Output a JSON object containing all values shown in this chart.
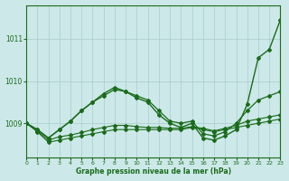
{
  "background_color": "#cce8e8",
  "grid_color": "#aacccc",
  "line_color": "#1a6b1a",
  "xlabel": "Graphe pression niveau de la mer (hPa)",
  "xlim": [
    0,
    23
  ],
  "ylim": [
    1008.2,
    1011.8
  ],
  "yticks": [
    1009,
    1010,
    1011
  ],
  "xticks": [
    0,
    1,
    2,
    3,
    4,
    5,
    6,
    7,
    8,
    9,
    10,
    11,
    12,
    13,
    14,
    15,
    16,
    17,
    18,
    19,
    20,
    21,
    22,
    23
  ],
  "series": [
    {
      "x": [
        0,
        1,
        2,
        3,
        4,
        5,
        6,
        7,
        8,
        9,
        10,
        11,
        12,
        13,
        14,
        15,
        16,
        17,
        18,
        19,
        20,
        21,
        22,
        23
      ],
      "y": [
        1009.0,
        1008.8,
        1008.55,
        1008.6,
        1008.65,
        1008.7,
        1008.75,
        1008.8,
        1008.85,
        1008.85,
        1008.85,
        1008.85,
        1008.85,
        1008.85,
        1008.85,
        1008.9,
        1008.85,
        1008.8,
        1008.85,
        1008.9,
        1008.95,
        1009.0,
        1009.05,
        1009.1
      ],
      "marker": "D",
      "ms": 2.0,
      "lw": 0.8
    },
    {
      "x": [
        0,
        1,
        2,
        3,
        4,
        5,
        6,
        7,
        8,
        9,
        10,
        11,
        12,
        13,
        14,
        15,
        16,
        17,
        18,
        19,
        20,
        21,
        22,
        23
      ],
      "y": [
        1009.0,
        1008.82,
        1008.6,
        1008.68,
        1008.72,
        1008.78,
        1008.85,
        1008.9,
        1008.95,
        1008.95,
        1008.92,
        1008.9,
        1008.9,
        1008.88,
        1008.88,
        1008.92,
        1008.88,
        1008.82,
        1008.88,
        1008.95,
        1009.05,
        1009.1,
        1009.15,
        1009.2
      ],
      "marker": "D",
      "ms": 2.0,
      "lw": 0.8
    },
    {
      "x": [
        0,
        1,
        2,
        3,
        4,
        5,
        6,
        7,
        8,
        9,
        10,
        11,
        12,
        13,
        14,
        15,
        16,
        17,
        18,
        19,
        20,
        21,
        22,
        23
      ],
      "y": [
        1009.0,
        1008.85,
        1008.65,
        1008.85,
        1009.05,
        1009.3,
        1009.5,
        1009.65,
        1009.8,
        1009.75,
        1009.65,
        1009.55,
        1009.3,
        1009.05,
        1009.0,
        1009.05,
        1008.75,
        1008.7,
        1008.8,
        1009.0,
        1009.3,
        1009.55,
        1009.65,
        1009.75
      ],
      "marker": "D",
      "ms": 2.0,
      "lw": 0.9
    },
    {
      "x": [
        0,
        1,
        2,
        3,
        4,
        5,
        6,
        7,
        8,
        9,
        10,
        11,
        12,
        13,
        14,
        15,
        16,
        17,
        18,
        19,
        20,
        21,
        22,
        23
      ],
      "y": [
        1009.0,
        1008.85,
        1008.65,
        1008.85,
        1009.05,
        1009.3,
        1009.5,
        1009.7,
        1009.85,
        1009.75,
        1009.6,
        1009.5,
        1009.2,
        1009.0,
        1008.9,
        1009.0,
        1008.65,
        1008.6,
        1008.7,
        1008.85,
        1009.45,
        1010.55,
        1010.75,
        1011.45
      ],
      "marker": "D",
      "ms": 2.0,
      "lw": 1.0
    }
  ]
}
